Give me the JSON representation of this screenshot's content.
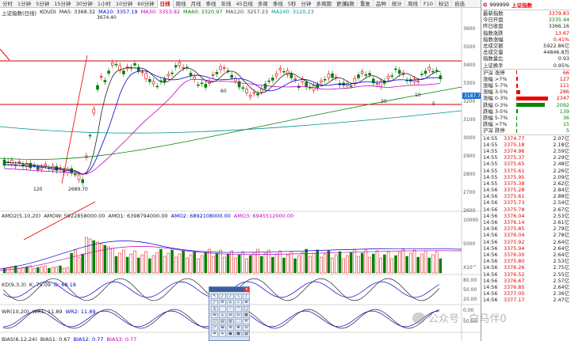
{
  "period_tabs": [
    {
      "label": "分时",
      "active": false
    },
    {
      "label": "1分钟",
      "active": false
    },
    {
      "label": "5分钟",
      "active": false
    },
    {
      "label": "15分钟",
      "active": false
    },
    {
      "label": "30分钟",
      "active": false
    },
    {
      "label": "1小时",
      "active": false
    },
    {
      "label": "10分钟",
      "active": false
    },
    {
      "label": "60分钟",
      "active": false
    },
    {
      "label": "日线",
      "active": true
    },
    {
      "label": "周线",
      "active": false
    },
    {
      "label": "月线",
      "active": false
    },
    {
      "label": "季线",
      "active": false
    },
    {
      "label": "年线",
      "active": false
    },
    {
      "label": "45日线",
      "active": false
    },
    {
      "label": "多周",
      "active": false
    },
    {
      "label": "季线",
      "active": false
    },
    {
      "label": "5秒",
      "active": false
    },
    {
      "label": "分钟",
      "active": false
    },
    {
      "label": "多周期",
      "active": false
    },
    {
      "label": "更多",
      "active": false
    }
  ],
  "right_toolbar": [
    "指数",
    "重复",
    "品种",
    "统计",
    "周线",
    "F10",
    "标记",
    "自选"
  ],
  "main_panel": {
    "title": "上证指数(日线)",
    "ma_labels": [
      {
        "text": "KOUDI",
        "color": "#222222"
      },
      {
        "text": "MA5: 3368.32",
        "color": "#222222"
      },
      {
        "text": "MA10: 3357.19",
        "color": "#0000d0"
      },
      {
        "text": "MA30: 3353.92",
        "color": "#c000c0"
      },
      {
        "text": "MA60: 3320.97",
        "color": "#008000"
      },
      {
        "text": "MA120: 3257.23",
        "color": "#444444"
      },
      {
        "text": "MA240: 3120.23",
        "color": "#009090"
      }
    ],
    "annotations": [
      {
        "text": "3674.40",
        "color": "#222222"
      },
      {
        "text": "2689.70",
        "color": "#222222"
      },
      {
        "text": "120",
        "color": "#222222"
      },
      {
        "text": "60",
        "color": "#222222"
      },
      {
        "text": "20",
        "color": "#222222"
      },
      {
        "text": "10",
        "color": "#222222"
      },
      {
        "text": "5",
        "color": "#222222"
      },
      {
        "text": "3187.7",
        "color": "#ffffff"
      }
    ],
    "price_axis": [
      "3600",
      "3500",
      "3400",
      "3300",
      "3200",
      "3100",
      "3000",
      "2900",
      "2800",
      "2700",
      "2600"
    ]
  },
  "volume_panel": {
    "labels": [
      {
        "text": "AMO2(5,10,20)",
        "color": "#222222"
      },
      {
        "text": "AMOW: 5922858000.00",
        "color": "#222222"
      },
      {
        "text": "AMO1: 6398794000.00",
        "color": "#222222"
      },
      {
        "text": "AMO2: 6892108000.00",
        "color": "#0000d0"
      },
      {
        "text": "AMO3: 6945512000.00",
        "color": "#c000c0"
      }
    ],
    "axis": [
      "10000",
      "5000",
      "X10^"
    ]
  },
  "kd_panel": {
    "labels": [
      {
        "text": "KD(9,3,3)",
        "color": "#222222"
      },
      {
        "text": "K: 75.09",
        "color": "#222222"
      },
      {
        "text": "D: 68.18",
        "color": "#0000d0"
      }
    ],
    "axis": [
      "80.00",
      "50.00",
      "20.00"
    ]
  },
  "wr_panel": {
    "labels": [
      {
        "text": "WR(10,20)",
        "color": "#222222"
      },
      {
        "text": "WR1: 11.89",
        "color": "#222222"
      },
      {
        "text": "WR2: 11.89",
        "color": "#0000d0"
      }
    ],
    "axis": [
      "0.00",
      "50.00"
    ]
  },
  "bias_panel": {
    "labels": [
      {
        "text": "BIAS(6,12,24)",
        "color": "#222222"
      },
      {
        "text": "BIAS1: 0.67",
        "color": "#222222"
      },
      {
        "text": "BIAS2: 0.77",
        "color": "#0000d0"
      },
      {
        "text": "BIAS3: 0.77",
        "color": "#c000c0"
      }
    ]
  },
  "quote": {
    "header_g": "G",
    "code": "999999",
    "name": "上证指数",
    "rows": [
      {
        "k": "最新指数",
        "v": "3379.83",
        "c": "red"
      },
      {
        "k": "今日开盘",
        "v": "3335.44",
        "c": "green"
      },
      {
        "k": "昨日收盘",
        "v": "3366.16",
        "c": ""
      },
      {
        "k": "指数涨跌",
        "v": "13.67",
        "c": "red"
      },
      {
        "k": "指数涨幅",
        "v": "0.41%",
        "c": "red"
      },
      {
        "k": "总成交额",
        "v": "5922.86亿",
        "c": ""
      },
      {
        "k": "总成交量",
        "v": "44846.8万",
        "c": ""
      },
      {
        "k": "指数量比",
        "v": "0.93",
        "c": ""
      },
      {
        "k": "上证换手",
        "v": "0.95%",
        "c": ""
      }
    ],
    "breadth": [
      {
        "k": "沪深 涨停",
        "v": "66",
        "bar": 0.03,
        "c": "red"
      },
      {
        "k": "涨幅 >7%",
        "v": "127",
        "bar": 0.06,
        "c": "red"
      },
      {
        "k": "涨幅 5-7%",
        "v": "111",
        "bar": 0.05,
        "c": "red"
      },
      {
        "k": "涨幅 3-5%",
        "v": "286",
        "bar": 0.12,
        "c": "red"
      },
      {
        "k": "涨幅 0-3%",
        "v": "2347",
        "bar": 1.0,
        "c": "red"
      },
      {
        "k": "跌幅 0-3%",
        "v": "2092",
        "bar": 0.89,
        "c": "green"
      },
      {
        "k": "跌幅 3-5%",
        "v": "139",
        "bar": 0.06,
        "c": "green"
      },
      {
        "k": "跌幅 5-7%",
        "v": "36",
        "bar": 0.02,
        "c": "green"
      },
      {
        "k": "跌幅 >7%",
        "v": "15",
        "bar": 0.01,
        "c": "green"
      },
      {
        "k": "沪深 跌停",
        "v": "5",
        "bar": 0.005,
        "c": "green"
      }
    ],
    "ticks": [
      {
        "t": "14:55",
        "p": "3374.77",
        "a": "2.07亿"
      },
      {
        "t": "14:55",
        "p": "3375.18",
        "a": "2.18亿"
      },
      {
        "t": "14:55",
        "p": "3374.96",
        "a": "2.59亿"
      },
      {
        "t": "14:55",
        "p": "3375.37",
        "a": "2.29亿"
      },
      {
        "t": "14:55",
        "p": "3375.65",
        "a": "2.48亿"
      },
      {
        "t": "14:55",
        "p": "3375.61",
        "a": "2.26亿"
      },
      {
        "t": "14:55",
        "p": "3375.95",
        "a": "2.09亿"
      },
      {
        "t": "14:55",
        "p": "3375.38",
        "a": "2.62亿"
      },
      {
        "t": "14:56",
        "p": "3375.28",
        "a": "2.84亿"
      },
      {
        "t": "14:56",
        "p": "3375.61",
        "a": "2.88亿"
      },
      {
        "t": "14:56",
        "p": "3375.73",
        "a": "2.54亿"
      },
      {
        "t": "14:56",
        "p": "3375.78",
        "a": "2.67亿"
      },
      {
        "t": "14:56",
        "p": "3376.04",
        "a": "2.53亿"
      },
      {
        "t": "14:56",
        "p": "3376.14",
        "a": "2.61亿"
      },
      {
        "t": "14:56",
        "p": "3375.85",
        "a": "2.79亿"
      },
      {
        "t": "14:56",
        "p": "3376.04",
        "a": "2.78亿"
      },
      {
        "t": "14:56",
        "p": "3375.92",
        "a": "2.64亿"
      },
      {
        "t": "14:56",
        "p": "3375.94",
        "a": "2.64亿"
      },
      {
        "t": "14:56",
        "p": "3376.00",
        "a": "2.64亿"
      },
      {
        "t": "14:56",
        "p": "3375.80",
        "a": "2.53亿"
      },
      {
        "t": "14:56",
        "p": "3376.26",
        "a": "2.75亿"
      },
      {
        "t": "14:56",
        "p": "3376.52",
        "a": "2.55亿"
      },
      {
        "t": "14:56",
        "p": "3376.67",
        "a": "2.57亿"
      },
      {
        "t": "14:56",
        "p": "3376.85",
        "a": "2.64亿"
      },
      {
        "t": "14:56",
        "p": "3377.00",
        "a": "2.36亿"
      },
      {
        "t": "14:56",
        "p": "3377.17",
        "a": "2.47亿"
      }
    ]
  },
  "watermark": "公众号 · 白马伴0",
  "colors": {
    "up": "#e00000",
    "down": "#008000",
    "ma5": "#222222",
    "ma10": "#0000d0",
    "ma30": "#c000c0",
    "ma60": "#008000",
    "ma120": "#444444",
    "ma240": "#009090"
  }
}
